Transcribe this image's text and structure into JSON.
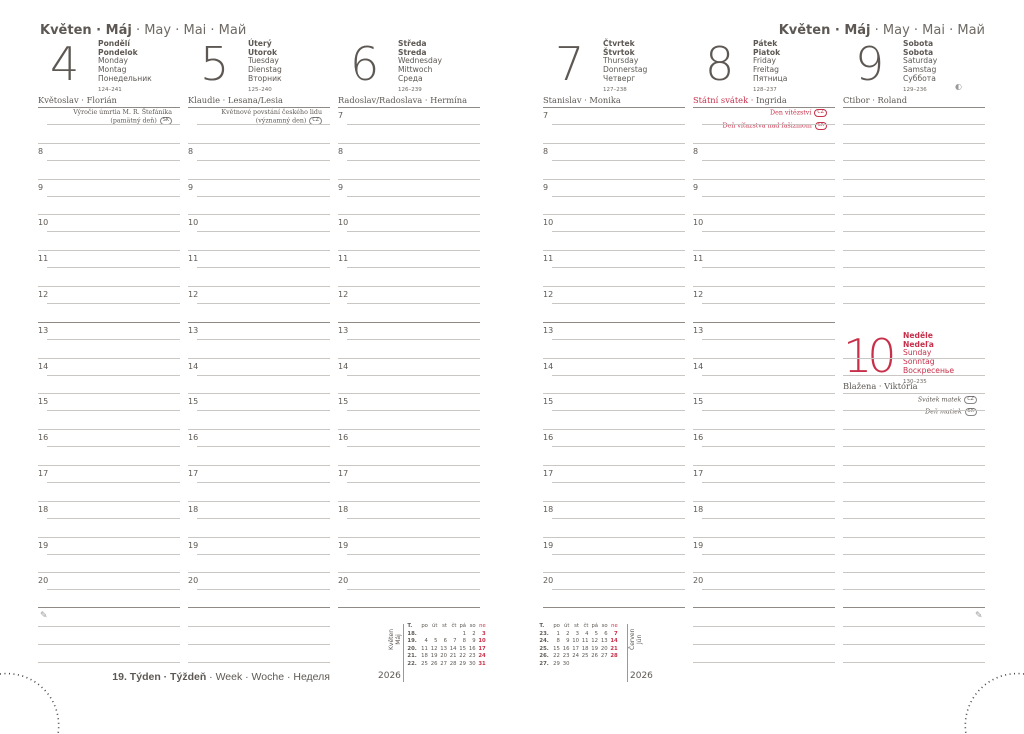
{
  "month_title": {
    "bold": "Květen · Máj",
    "rest": " · May · Mai · Май"
  },
  "week_footer": {
    "bold": "19. Týden · Týždeň",
    "rest": " · Week · Woche · Неделя"
  },
  "hours": [
    "7",
    "8",
    "9",
    "10",
    "11",
    "12",
    "13",
    "14",
    "15",
    "16",
    "17",
    "18",
    "19",
    "20"
  ],
  "days": [
    {
      "num": "4",
      "names_bold": [
        "Pondělí",
        "Pondelok"
      ],
      "names": [
        "Monday",
        "Montag",
        "Понедельник"
      ],
      "count": "124–241",
      "nameday": "Květoslav · Florián",
      "holiday_label": "",
      "notes": [
        {
          "text": "Výročie úmrtia M. R. Štefánika",
          "badge": ""
        },
        {
          "text": "(pamätný deň)",
          "badge": "SK"
        }
      ],
      "hide_first_hour": true,
      "red": false
    },
    {
      "num": "5",
      "names_bold": [
        "Úterý",
        "Utorok"
      ],
      "names": [
        "Tuesday",
        "Dienstag",
        "Вторник"
      ],
      "count": "125–240",
      "nameday": "Klaudie · Lesana/Lesia",
      "holiday_label": "",
      "notes": [
        {
          "text": "Květnové povstání českého lidu",
          "badge": ""
        },
        {
          "text": "(významný den)",
          "badge": "CZ"
        }
      ],
      "hide_first_hour": true,
      "red": false
    },
    {
      "num": "6",
      "names_bold": [
        "Středa",
        "Streda"
      ],
      "names": [
        "Wednesday",
        "Mittwoch",
        "Среда"
      ],
      "count": "126–239",
      "nameday": "Radoslav/Radoslava · Hermína",
      "holiday_label": "",
      "notes": [],
      "hide_first_hour": false,
      "red": false
    },
    {
      "num": "7",
      "names_bold": [
        "Čtvrtek",
        "Štvrtok"
      ],
      "names": [
        "Thursday",
        "Donnerstag",
        "Четверг"
      ],
      "count": "127–238",
      "nameday": "Stanislav · Monika",
      "holiday_label": "",
      "notes": [],
      "hide_first_hour": false,
      "red": false
    },
    {
      "num": "8",
      "names_bold": [
        "Pátek",
        "Piatok"
      ],
      "names": [
        "Friday",
        "Freitag",
        "Пятница"
      ],
      "count": "128–237",
      "nameday": "Ingrida",
      "holiday_label": "Státní svátek · ",
      "notes": [
        {
          "text": "Den vítězství",
          "badge": "CZ"
        },
        {
          "text": "Deň víťazstva nad fašizmom",
          "badge": "SK"
        }
      ],
      "hide_first_hour": true,
      "red": true
    },
    {
      "num": "9",
      "names_bold": [
        "Sobota",
        "Sobota"
      ],
      "names": [
        "Saturday",
        "Samstag",
        "Суббота"
      ],
      "count": "129–236",
      "nameday": "Ctibor · Roland",
      "holiday_label": "",
      "notes": [],
      "hide_first_hour": true,
      "red": false,
      "moon": "◐"
    }
  ],
  "sunday": {
    "num": "10",
    "names_bold": [
      "Neděle",
      "Nedeľa"
    ],
    "names": [
      "Sunday",
      "Sonntag",
      "Воскресенье"
    ],
    "count": "130–235",
    "nameday": "Blažena · Viktória",
    "notes": [
      {
        "text": "Svátek matek",
        "badge": "CZ"
      },
      {
        "text": "Deň matiek",
        "badge": "SK"
      }
    ]
  },
  "mini_calendars": [
    {
      "label": [
        "Květen",
        "Máj"
      ],
      "year": "2026",
      "header": [
        "T.",
        "po",
        "út",
        "st",
        "čt",
        "pá",
        "so",
        "ne"
      ],
      "rows": [
        [
          "18.",
          "",
          "",
          "",
          "",
          "1",
          "2",
          "3"
        ],
        [
          "19.",
          "4",
          "5",
          "6",
          "7",
          "8",
          "9",
          "10"
        ],
        [
          "20.",
          "11",
          "12",
          "13",
          "14",
          "15",
          "16",
          "17"
        ],
        [
          "21.",
          "18",
          "19",
          "20",
          "21",
          "22",
          "23",
          "24"
        ],
        [
          "22.",
          "25",
          "26",
          "27",
          "28",
          "29",
          "30",
          "31"
        ]
      ]
    },
    {
      "label": [
        "Červen",
        "Jún"
      ],
      "year": "2026",
      "header": [
        "T.",
        "po",
        "út",
        "st",
        "čt",
        "pá",
        "so",
        "ne"
      ],
      "rows": [
        [
          "23.",
          "1",
          "2",
          "3",
          "4",
          "5",
          "6",
          "7"
        ],
        [
          "24.",
          "8",
          "9",
          "10",
          "11",
          "12",
          "13",
          "14"
        ],
        [
          "25.",
          "15",
          "16",
          "17",
          "18",
          "19",
          "20",
          "21"
        ],
        [
          "26.",
          "22",
          "23",
          "24",
          "25",
          "26",
          "27",
          "28"
        ],
        [
          "27.",
          "29",
          "30",
          "",
          "",
          "",
          "",
          ""
        ]
      ]
    }
  ],
  "colors": {
    "text": "#5d5853",
    "accent_red": "#c8304a",
    "line": "#c9c6c3"
  },
  "icons": {
    "notes": "pencil-icon",
    "moon": "moon-phase-icon"
  }
}
